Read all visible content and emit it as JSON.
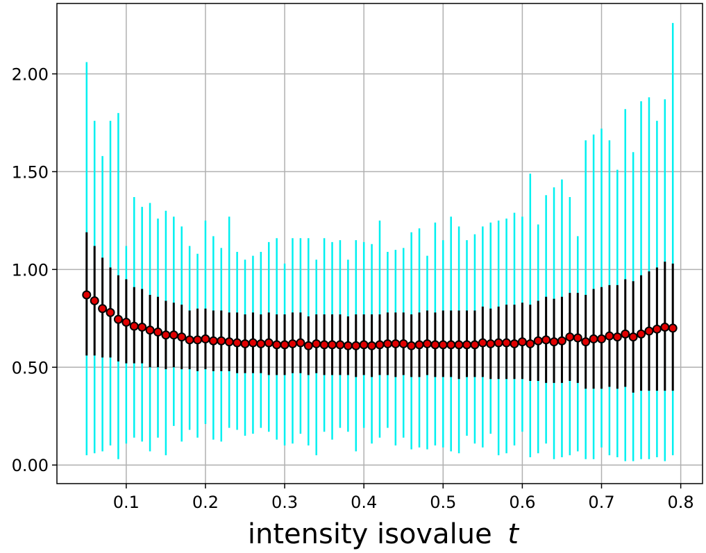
{
  "chart_data": {
    "type": "scatter",
    "xlabel": "intensity isovalue",
    "xlabel_var": "t",
    "ylabel": "",
    "xlim": [
      0.0125,
      0.8275
    ],
    "ylim": [
      -0.095,
      2.36
    ],
    "grid": true,
    "x_ticks": [
      0.1,
      0.2,
      0.3,
      0.4,
      0.5,
      0.6,
      0.7,
      0.8
    ],
    "x_tick_labels": [
      "0.1",
      "0.2",
      "0.3",
      "0.4",
      "0.5",
      "0.6",
      "0.7",
      "0.8"
    ],
    "y_ticks": [
      0.0,
      0.5,
      1.0,
      1.5,
      2.0
    ],
    "y_tick_labels": [
      "0.00",
      "0.50",
      "1.00",
      "1.50",
      "2.00"
    ],
    "colors": {
      "marker_fill": "#e00000",
      "marker_edge": "#000000",
      "std_bar": "#000000",
      "range_bar": "#00f0f0",
      "grid": "#b0b0b0"
    },
    "series": [
      {
        "x": [
          0.05,
          0.06,
          0.07,
          0.08,
          0.09,
          0.1,
          0.11,
          0.12,
          0.13,
          0.14,
          0.15,
          0.16,
          0.17,
          0.18,
          0.19,
          0.2,
          0.21,
          0.22,
          0.23,
          0.24,
          0.25,
          0.26,
          0.27,
          0.28,
          0.29,
          0.3,
          0.31,
          0.32,
          0.33,
          0.34,
          0.35,
          0.36,
          0.37,
          0.38,
          0.39,
          0.4,
          0.41,
          0.42,
          0.43,
          0.44,
          0.45,
          0.46,
          0.47,
          0.48,
          0.49,
          0.5,
          0.51,
          0.52,
          0.53,
          0.54,
          0.55,
          0.56,
          0.57,
          0.58,
          0.59,
          0.6,
          0.61,
          0.62,
          0.63,
          0.64,
          0.65,
          0.66,
          0.67,
          0.68,
          0.69,
          0.7,
          0.71,
          0.72,
          0.73,
          0.74,
          0.75,
          0.76,
          0.77,
          0.78,
          0.79
        ],
        "mean": [
          0.87,
          0.84,
          0.8,
          0.78,
          0.745,
          0.73,
          0.71,
          0.705,
          0.69,
          0.68,
          0.665,
          0.665,
          0.655,
          0.64,
          0.64,
          0.645,
          0.635,
          0.635,
          0.63,
          0.625,
          0.62,
          0.625,
          0.62,
          0.625,
          0.615,
          0.615,
          0.62,
          0.625,
          0.61,
          0.62,
          0.615,
          0.615,
          0.615,
          0.61,
          0.61,
          0.615,
          0.61,
          0.615,
          0.62,
          0.62,
          0.62,
          0.61,
          0.615,
          0.62,
          0.615,
          0.615,
          0.615,
          0.615,
          0.615,
          0.615,
          0.625,
          0.62,
          0.625,
          0.625,
          0.62,
          0.63,
          0.62,
          0.635,
          0.64,
          0.63,
          0.635,
          0.655,
          0.65,
          0.63,
          0.645,
          0.645,
          0.66,
          0.655,
          0.67,
          0.655,
          0.67,
          0.685,
          0.695,
          0.705,
          0.7
        ],
        "std_low": [
          0.56,
          0.56,
          0.55,
          0.55,
          0.53,
          0.52,
          0.52,
          0.52,
          0.5,
          0.5,
          0.49,
          0.5,
          0.49,
          0.49,
          0.48,
          0.49,
          0.48,
          0.48,
          0.48,
          0.47,
          0.47,
          0.47,
          0.47,
          0.46,
          0.46,
          0.46,
          0.47,
          0.47,
          0.46,
          0.47,
          0.46,
          0.46,
          0.46,
          0.46,
          0.45,
          0.46,
          0.45,
          0.46,
          0.46,
          0.45,
          0.46,
          0.45,
          0.45,
          0.46,
          0.45,
          0.45,
          0.45,
          0.44,
          0.45,
          0.45,
          0.45,
          0.44,
          0.44,
          0.44,
          0.44,
          0.44,
          0.43,
          0.43,
          0.42,
          0.42,
          0.42,
          0.43,
          0.42,
          0.39,
          0.39,
          0.39,
          0.4,
          0.39,
          0.4,
          0.37,
          0.38,
          0.38,
          0.38,
          0.38,
          0.38
        ],
        "std_high": [
          1.19,
          1.12,
          1.06,
          1.01,
          0.97,
          0.95,
          0.91,
          0.9,
          0.87,
          0.86,
          0.84,
          0.83,
          0.82,
          0.79,
          0.8,
          0.8,
          0.79,
          0.79,
          0.78,
          0.78,
          0.77,
          0.78,
          0.77,
          0.78,
          0.77,
          0.77,
          0.78,
          0.78,
          0.76,
          0.77,
          0.77,
          0.77,
          0.77,
          0.76,
          0.77,
          0.77,
          0.77,
          0.77,
          0.78,
          0.78,
          0.78,
          0.77,
          0.78,
          0.79,
          0.78,
          0.79,
          0.79,
          0.79,
          0.79,
          0.79,
          0.81,
          0.8,
          0.81,
          0.82,
          0.82,
          0.83,
          0.82,
          0.84,
          0.86,
          0.85,
          0.86,
          0.88,
          0.88,
          0.87,
          0.9,
          0.91,
          0.92,
          0.92,
          0.95,
          0.94,
          0.97,
          0.99,
          1.01,
          1.04,
          1.03
        ],
        "min": [
          0.05,
          0.06,
          0.07,
          0.1,
          0.03,
          0.11,
          0.14,
          0.12,
          0.07,
          0.14,
          0.05,
          0.2,
          0.12,
          0.18,
          0.14,
          0.21,
          0.13,
          0.12,
          0.19,
          0.18,
          0.15,
          0.16,
          0.19,
          0.17,
          0.13,
          0.1,
          0.11,
          0.16,
          0.1,
          0.05,
          0.17,
          0.13,
          0.19,
          0.17,
          0.07,
          0.19,
          0.11,
          0.14,
          0.19,
          0.1,
          0.14,
          0.08,
          0.09,
          0.08,
          0.1,
          0.09,
          0.07,
          0.06,
          0.15,
          0.11,
          0.09,
          0.16,
          0.05,
          0.06,
          0.1,
          0.17,
          0.04,
          0.06,
          0.11,
          0.03,
          0.04,
          0.05,
          0.07,
          0.03,
          0.03,
          0.09,
          0.05,
          0.04,
          0.02,
          0.02,
          0.03,
          0.03,
          0.04,
          0.02,
          0.05
        ],
        "max": [
          2.06,
          1.76,
          1.58,
          1.76,
          1.8,
          1.12,
          1.37,
          1.32,
          1.34,
          1.26,
          1.3,
          1.27,
          1.22,
          1.12,
          1.08,
          1.25,
          1.17,
          1.11,
          1.27,
          1.09,
          1.05,
          1.07,
          1.09,
          1.14,
          1.16,
          1.03,
          1.16,
          1.16,
          1.16,
          1.05,
          1.16,
          1.14,
          1.15,
          1.05,
          1.15,
          1.14,
          1.13,
          1.25,
          1.09,
          1.1,
          1.11,
          1.19,
          1.21,
          1.07,
          1.24,
          1.15,
          1.27,
          1.22,
          1.15,
          1.18,
          1.22,
          1.24,
          1.25,
          1.26,
          1.29,
          1.27,
          1.49,
          1.23,
          1.38,
          1.42,
          1.46,
          1.37,
          1.17,
          1.66,
          1.69,
          1.72,
          1.66,
          1.51,
          1.82,
          1.6,
          1.86,
          1.88,
          1.76,
          1.87,
          2.26
        ]
      }
    ]
  }
}
